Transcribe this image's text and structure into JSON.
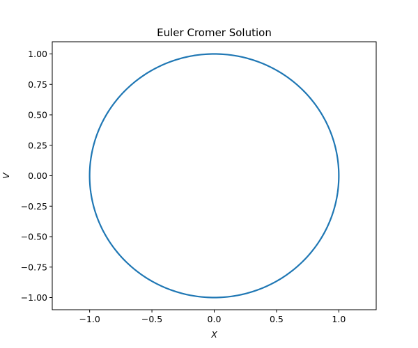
{
  "chart_data": {
    "type": "line",
    "title": "Euler Cromer Solution",
    "xlabel": "X",
    "ylabel": "V",
    "xlim": [
      -1.3,
      1.3
    ],
    "ylim": [
      -1.1,
      1.1
    ],
    "xticks": [
      -1.0,
      -0.5,
      0.0,
      0.5,
      1.0
    ],
    "xtick_labels": [
      "−1.0",
      "−0.5",
      "0.0",
      "0.5",
      "1.0"
    ],
    "yticks": [
      1.0,
      0.75,
      0.5,
      0.25,
      0.0,
      -0.25,
      -0.5,
      -0.75,
      -1.0
    ],
    "ytick_labels": [
      "1.00",
      "0.75",
      "0.50",
      "0.25",
      "0.00",
      "−0.25",
      "−0.50",
      "−0.75",
      "−1.00"
    ],
    "grid": false,
    "series": [
      {
        "color": "#1f77b4",
        "curve": "circle",
        "center": [
          0,
          0
        ],
        "radius": 1.0,
        "x": [
          1.0,
          0.866,
          0.5,
          0.0,
          -0.5,
          -0.866,
          -1.0,
          -0.866,
          -0.5,
          0.0,
          0.5,
          0.866,
          1.0
        ],
        "y": [
          0.0,
          0.5,
          0.866,
          1.0,
          0.866,
          0.5,
          0.0,
          -0.5,
          -0.866,
          -1.0,
          -0.866,
          -0.5,
          0.0
        ]
      }
    ]
  }
}
